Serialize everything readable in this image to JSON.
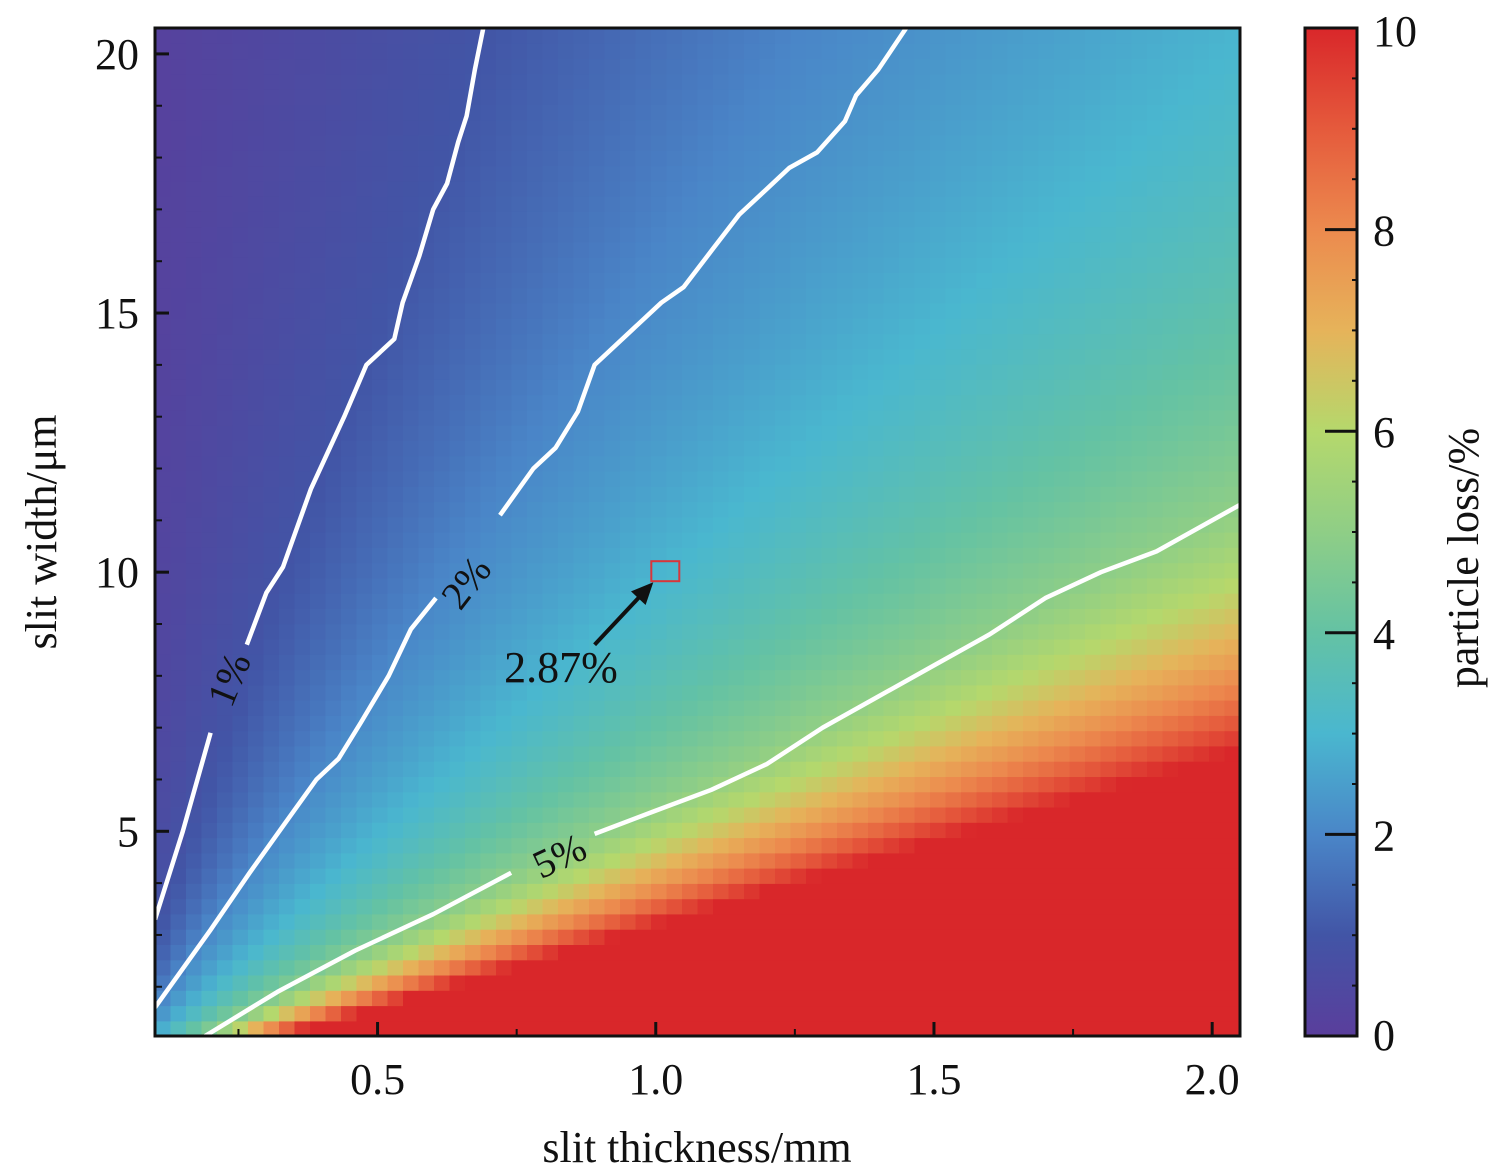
{
  "chart_data": {
    "type": "heatmap",
    "title": "",
    "xlabel": "slit thickness/mm",
    "ylabel": "slit width/μm",
    "xlim": [
      0.1,
      2.05
    ],
    "ylim": [
      1.05,
      20.5
    ],
    "x_ticks": [
      0.5,
      1.0,
      1.5,
      2.0
    ],
    "x_tick_labels": [
      "0.5",
      "1.0",
      "1.5",
      "2.0"
    ],
    "y_ticks": [
      5,
      10,
      15,
      20
    ],
    "y_tick_labels": [
      "5",
      "10",
      "15",
      "20"
    ],
    "grid": false,
    "colorbar": {
      "label": "particle loss/%",
      "range": [
        0,
        10
      ],
      "ticks": [
        0,
        2,
        4,
        6,
        8,
        10
      ],
      "tick_labels": [
        "0",
        "2",
        "4",
        "6",
        "8",
        "10"
      ],
      "placement": "right",
      "colors": [
        "#5a3e9c",
        "#4255a6",
        "#4a86c8",
        "#4ab7cf",
        "#64c2a4",
        "#8fce86",
        "#b5d86c",
        "#e6b35a",
        "#ec8a4e",
        "#e55a3c",
        "#d9272a"
      ]
    },
    "contours": [
      {
        "level": 1,
        "label": "1%",
        "label_at": [
          0.24,
          7.9
        ],
        "points": [
          [
            0.1,
            3.3
          ],
          [
            0.15,
            5.0
          ],
          [
            0.2,
            6.9
          ],
          [
            0.265,
            8.6
          ],
          [
            0.3,
            9.6
          ],
          [
            0.33,
            10.1
          ],
          [
            0.38,
            11.6
          ],
          [
            0.44,
            13.0
          ],
          [
            0.48,
            14.0
          ],
          [
            0.53,
            14.5
          ],
          [
            0.545,
            15.2
          ],
          [
            0.575,
            16.1
          ],
          [
            0.6,
            17.0
          ],
          [
            0.625,
            17.5
          ],
          [
            0.645,
            18.3
          ],
          [
            0.66,
            18.8
          ],
          [
            0.675,
            19.7
          ],
          [
            0.69,
            20.5
          ]
        ],
        "gap": [
          0.2,
          0.265
        ]
      },
      {
        "level": 2,
        "label": "2%",
        "label_at": [
          0.665,
          9.75
        ],
        "points": [
          [
            0.1,
            1.6
          ],
          [
            0.2,
            3.1
          ],
          [
            0.27,
            4.2
          ],
          [
            0.33,
            5.1
          ],
          [
            0.39,
            6.0
          ],
          [
            0.43,
            6.4
          ],
          [
            0.47,
            7.1
          ],
          [
            0.52,
            8.0
          ],
          [
            0.56,
            8.9
          ],
          [
            0.605,
            9.5
          ],
          [
            0.72,
            11.1
          ],
          [
            0.78,
            12.0
          ],
          [
            0.82,
            12.4
          ],
          [
            0.86,
            13.1
          ],
          [
            0.89,
            14.0
          ],
          [
            0.95,
            14.6
          ],
          [
            1.01,
            15.2
          ],
          [
            1.05,
            15.5
          ],
          [
            1.1,
            16.2
          ],
          [
            1.15,
            16.9
          ],
          [
            1.2,
            17.4
          ],
          [
            1.24,
            17.8
          ],
          [
            1.29,
            18.1
          ],
          [
            1.34,
            18.7
          ],
          [
            1.36,
            19.2
          ],
          [
            1.4,
            19.7
          ],
          [
            1.45,
            20.5
          ]
        ],
        "gap": [
          0.605,
          0.72
        ]
      },
      {
        "level": 5,
        "label": "5%",
        "label_at": [
          0.83,
          4.45
        ],
        "points": [
          [
            0.19,
            1.05
          ],
          [
            0.32,
            1.9
          ],
          [
            0.46,
            2.7
          ],
          [
            0.6,
            3.4
          ],
          [
            0.74,
            4.2
          ],
          [
            0.89,
            4.95
          ],
          [
            1.0,
            5.4
          ],
          [
            1.1,
            5.8
          ],
          [
            1.2,
            6.3
          ],
          [
            1.3,
            7.0
          ],
          [
            1.4,
            7.6
          ],
          [
            1.5,
            8.2
          ],
          [
            1.6,
            8.8
          ],
          [
            1.7,
            9.5
          ],
          [
            1.8,
            10.0
          ],
          [
            1.9,
            10.4
          ],
          [
            2.05,
            11.3
          ]
        ],
        "gap": [
          0.74,
          0.89
        ]
      }
    ],
    "field_model": "particle loss increases with slit thickness and decreases with slit width; saturates at 10% (red) in lower-right",
    "annotation": {
      "text": "2.87%",
      "point": [
        1.01,
        10.0
      ],
      "marker": "red square",
      "marker_color": "#d9363a",
      "arrow_from": [
        0.89,
        8.6
      ]
    }
  }
}
